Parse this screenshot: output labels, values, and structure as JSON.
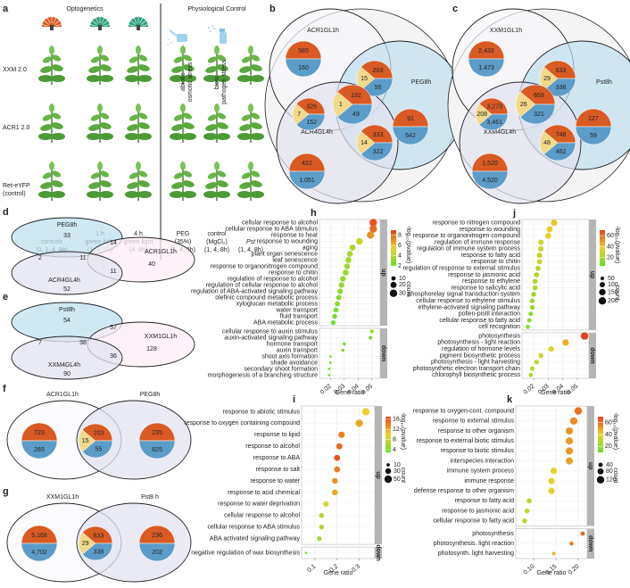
{
  "panel_a": {
    "label": "a",
    "optogenetics": "Optogenetics",
    "physiological": "Physiological Control",
    "rows": [
      "XXM 2.0",
      "ACR1 2.0",
      "Ret-eYFP"
    ],
    "row_note": "(control)",
    "stress": [
      "abiotic",
      "osmotic stress",
      "biotic",
      "pathogen stress"
    ],
    "columns": [
      [
        "controls",
        "(0, 1, 4, 8h)"
      ],
      [
        "1 h",
        "green light",
        "(1, 4, 8h)"
      ],
      [
        "4 h",
        "green light",
        "(4, 8h)"
      ],
      [
        "PEG",
        "(35%)",
        "(1, 4, 8h)"
      ],
      [
        "control",
        "(MgCl₂)",
        "(1, 4, 8h)"
      ],
      [
        "Pst",
        "(1, 4, 8h)"
      ]
    ]
  },
  "venn3": [
    {
      "label": "b",
      "sets": [
        "ACR1GL1h",
        "PEG8h",
        "ACR4GL4h"
      ],
      "pies": [
        [
          "585",
          "160"
        ],
        [
          "203",
          "15",
          "55"
        ],
        [
          "326",
          "7",
          "152"
        ],
        [
          "192",
          "1",
          "49"
        ],
        [
          "91",
          "542"
        ],
        [
          "333",
          "14",
          "322"
        ],
        [
          "422",
          "1,051"
        ]
      ]
    },
    {
      "label": "c",
      "sets": [
        "XXM1GL1h",
        "Pst8h",
        "XXM4GL4h"
      ],
      "pies": [
        [
          "2,433",
          "1,473"
        ],
        [
          "633",
          "29",
          "338"
        ],
        [
          "3,273",
          "208",
          "3,461"
        ],
        [
          "659",
          "26",
          "321"
        ],
        [
          "127",
          "59"
        ],
        [
          "748",
          "48",
          "462"
        ],
        [
          "1,520",
          "4,520"
        ]
      ]
    }
  ],
  "venn_ellipse": [
    {
      "label": "d",
      "sets": [
        "PEG8h",
        "ACR1GL1h",
        "ACR4GL4h"
      ],
      "regions": [
        "33",
        "14",
        "11",
        "2",
        "40",
        "11",
        "52"
      ]
    },
    {
      "label": "e",
      "sets": [
        "Pst8h",
        "XXM1GL1h",
        "XXM4GL4h"
      ],
      "regions": [
        "54",
        "57",
        "38",
        "7",
        "128",
        "36",
        "90"
      ]
    }
  ],
  "venn2": [
    {
      "label": "f",
      "sets": [
        "ACR1GL1h",
        "PEG8h"
      ],
      "pies": [
        [
          "723",
          "265"
        ],
        [
          "203",
          "15",
          "55"
        ],
        [
          "235",
          "825"
        ]
      ]
    },
    {
      "label": "g",
      "sets": [
        "XXM1GL1h",
        "Pst8 h"
      ],
      "pies": [
        [
          "5,168",
          "4,702"
        ],
        [
          "633",
          "29",
          "338"
        ],
        [
          "236",
          "202"
        ]
      ]
    }
  ],
  "chart_data": [
    {
      "type": "dot",
      "label": "h",
      "xlabel": "Gene ratio",
      "xlim": [
        0.012,
        0.056
      ],
      "xticks": [
        0.02,
        0.03,
        0.04,
        0.05
      ],
      "color_label": "-log₁₀(pvalue)",
      "color_lim": [
        2,
        9
      ],
      "color_ticks": [
        2,
        4,
        6,
        8
      ],
      "colors": [
        "#66dd2a",
        "#e8d22a",
        "#e8401c"
      ],
      "size_label": "count",
      "size_ticks": [
        10,
        20,
        30
      ],
      "facets": [
        {
          "name": "up",
          "categories": [
            "cellular response to alcohol",
            "cellular response to ABA stimulus",
            "response to heat",
            "response to wounding",
            "aging",
            "plant organ senescence",
            "leaf senescence",
            "response to organonitrogen compound",
            "response to chitin",
            "regulation of response to alcohol",
            "regulation of cellular response to alcohol",
            "regulation of ABA-activated signaling pathway",
            "olefinic compound metabolic process",
            "xyloglucan metabolic process",
            "water transport",
            "fluid transport",
            "ABA metabolic process"
          ],
          "values": [
            0.051,
            0.051,
            0.049,
            0.041,
            0.036,
            0.034,
            0.033,
            0.032,
            0.031,
            0.029,
            0.028,
            0.027,
            0.026,
            0.025,
            0.024,
            0.023,
            0.022
          ],
          "pvalues": [
            8.5,
            8,
            7,
            4.5,
            4,
            3.8,
            3.6,
            3.5,
            3.4,
            3.2,
            3.1,
            3,
            2.9,
            2.8,
            2.6,
            2.5,
            2.4
          ],
          "counts": [
            30,
            30,
            28,
            24,
            20,
            19,
            19,
            18,
            18,
            17,
            16,
            16,
            15,
            14,
            14,
            13,
            12
          ]
        },
        {
          "name": "down",
          "categories": [
            "cellular response to auxin stimulus",
            "auxin-activated signaling pathway",
            "hormone transport",
            "auxin transport",
            "shoot axis formation",
            "shade avoidance",
            "secondary shoot formation",
            "morphogenesis of a branching structure"
          ],
          "values": [
            0.05,
            0.049,
            0.03,
            0.029,
            0.02,
            0.02,
            0.019,
            0.019
          ],
          "pvalues": [
            3,
            2.9,
            2.6,
            2.5,
            2.2,
            2.1,
            2,
            2
          ],
          "counts": [
            8,
            8,
            5,
            5,
            3,
            3,
            3,
            3
          ]
        }
      ]
    },
    {
      "type": "dot",
      "label": "i",
      "xlabel": "Gene ratio",
      "xlim": [
        0.04,
        0.37
      ],
      "xticks": [
        0.1,
        0.2,
        0.3
      ],
      "color_label": "-log₁₀(pvalue)",
      "color_lim": [
        3,
        17
      ],
      "color_ticks": [
        4,
        8,
        12,
        16
      ],
      "colors": [
        "#66dd2a",
        "#e8d22a",
        "#e8401c"
      ],
      "size_label": "count",
      "size_ticks": [
        10,
        30,
        50
      ],
      "facets": [
        {
          "name": "up",
          "categories": [
            "response to abiotic stimulus",
            "response to oxygen containing compound",
            "response to lipid",
            "response to alcohol",
            "response to ABA",
            "response to salt",
            "response to water",
            "response to acid chemical",
            "response to water deprivation",
            "cellular response to alcohol",
            "cellular response to ABA stimulus",
            "ABA activated signaling pathway"
          ],
          "values": [
            0.33,
            0.3,
            0.22,
            0.21,
            0.2,
            0.2,
            0.19,
            0.19,
            0.15,
            0.13,
            0.13,
            0.12
          ],
          "pvalues": [
            10,
            12,
            14,
            15,
            16,
            14,
            13,
            12,
            9,
            7,
            7,
            6
          ],
          "counts": [
            50,
            48,
            36,
            34,
            32,
            32,
            30,
            30,
            25,
            21,
            21,
            19
          ]
        },
        {
          "name": "down",
          "categories": [
            "negative regulation of wax biosynthesis"
          ],
          "values": [
            0.06
          ],
          "pvalues": [
            4
          ],
          "counts": [
            5
          ]
        }
      ]
    },
    {
      "type": "dot",
      "label": "j",
      "xlabel": "Gene ratio",
      "xlim": [
        0.012,
        0.058
      ],
      "xticks": [
        0.02,
        0.03,
        0.04,
        0.05
      ],
      "color_label": "-log₁₀(pvalue)",
      "color_lim": [
        5,
        70
      ],
      "color_ticks": [
        20,
        40,
        60
      ],
      "colors": [
        "#66dd2a",
        "#e8d22a",
        "#e8401c"
      ],
      "size_label": "count",
      "size_ticks": [
        50,
        100,
        150,
        200
      ],
      "facets": [
        {
          "name": "up",
          "categories": [
            "response to nitrogen compound",
            "response to wounding",
            "response to organonitrogen compound",
            "regulation of immune response",
            "regulation of immune system process",
            "response to fatty acid",
            "response to chitin",
            "regulation of response to external stimulus",
            "response to jasmonic acid",
            "response to ethylene",
            "response to salicylic acid",
            "phosphorelay signal transduction system",
            "cellular response to ethylene stimulus",
            "ethylene-activated signaling pathway",
            "pollen-pistil interaction",
            "cellular response to fatty acid",
            "cell recognition"
          ],
          "values": [
            0.034,
            0.031,
            0.03,
            0.025,
            0.025,
            0.024,
            0.024,
            0.023,
            0.022,
            0.021,
            0.021,
            0.02,
            0.019,
            0.019,
            0.018,
            0.017,
            0.016
          ],
          "pvalues": [
            40,
            38,
            36,
            30,
            30,
            28,
            30,
            26,
            25,
            22,
            22,
            20,
            18,
            18,
            15,
            14,
            12
          ],
          "counts": [
            140,
            130,
            125,
            105,
            105,
            100,
            100,
            95,
            92,
            88,
            88,
            85,
            80,
            80,
            75,
            70,
            65
          ]
        },
        {
          "name": "down",
          "categories": [
            "photosynthesis",
            "photosynthesis - light reaction",
            "regulation of hormone levels",
            "pigment biosynthetic process",
            "photosynthesis - light harvesting",
            "photosynthetic electron transport chain",
            "chlorophyll biosynthetic process"
          ],
          "values": [
            0.055,
            0.042,
            0.032,
            0.025,
            0.022,
            0.019,
            0.018
          ],
          "pvalues": [
            70,
            45,
            35,
            30,
            28,
            25,
            22
          ],
          "counts": [
            200,
            150,
            110,
            90,
            80,
            70,
            65
          ]
        }
      ]
    },
    {
      "type": "dot",
      "label": "k",
      "xlabel": "Gene ratio",
      "xlim": [
        0.06,
        0.22
      ],
      "xticks": [
        {
          "value": 0.1,
          "label": "0.10"
        },
        0.15,
        {
          "value": 0.2,
          "label": "0.20"
        }
      ],
      "color_label": "-log₁₀(pvalue)",
      "color_lim": [
        10,
        70
      ],
      "color_ticks": [
        20,
        40,
        60
      ],
      "colors": [
        "#66dd2a",
        "#e8d22a",
        "#e8401c"
      ],
      "size_label": "count",
      "size_ticks": [
        40,
        80,
        120
      ],
      "facets": [
        {
          "name": "up",
          "categories": [
            "response to oxygen-cont. compound",
            "response to external stimulus",
            "response to other organism",
            "response to external biotic stimulus",
            "response to biotic stimulus",
            "interspecies interaction",
            "immune system process",
            "immune response",
            "defense response to other organism",
            "response to fatty acid",
            "response to jasmonic acid",
            "cellular response to fatty acid"
          ],
          "values": [
            0.2,
            0.19,
            0.18,
            0.18,
            0.18,
            0.18,
            0.145,
            0.14,
            0.14,
            0.09,
            0.085,
            0.08
          ],
          "pvalues": [
            60,
            55,
            52,
            52,
            52,
            50,
            40,
            38,
            38,
            30,
            30,
            28
          ],
          "counts": [
            120,
            115,
            110,
            110,
            110,
            108,
            90,
            85,
            85,
            55,
            52,
            50
          ]
        },
        {
          "name": "down",
          "categories": [
            "photosynthesis",
            "photosynthesis. light reaction",
            "photosynth. light harvesting"
          ],
          "values": [
            0.21,
            0.185,
            0.145
          ],
          "pvalues": [
            62,
            58,
            45
          ],
          "counts": [
            40,
            35,
            28
          ]
        }
      ]
    }
  ]
}
